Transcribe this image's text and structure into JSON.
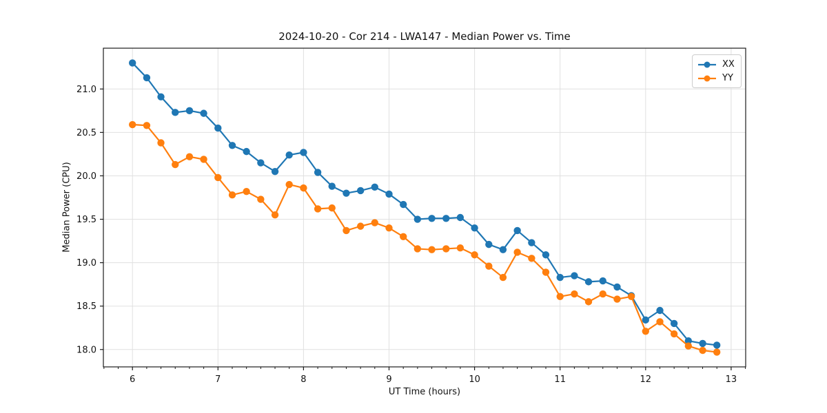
{
  "chart_data": {
    "type": "line",
    "title": "2024-10-20 - Cor 214 - LWA147 - Median Power vs. Time",
    "xlabel": "UT Time (hours)",
    "ylabel": "Median Power (CPU)",
    "xlim": [
      5.66,
      13.17
    ],
    "ylim": [
      17.8,
      21.47
    ],
    "xtick_values": [
      6,
      7,
      8,
      9,
      10,
      11,
      12,
      13
    ],
    "xtick_labels": [
      "6",
      "7",
      "8",
      "9",
      "10",
      "11",
      "12",
      "13"
    ],
    "ytick_values": [
      18.0,
      18.5,
      19.0,
      19.5,
      20.0,
      20.5,
      21.0
    ],
    "ytick_labels": [
      "18.0",
      "18.5",
      "19.0",
      "19.5",
      "20.0",
      "20.5",
      "21.0"
    ],
    "x_minor_tick_step_hours": 0.16667,
    "grid": true,
    "grid_color": "#e0e0e0",
    "legend_position": "upper right",
    "x": [
      6.0,
      6.167,
      6.333,
      6.5,
      6.667,
      6.833,
      7.0,
      7.167,
      7.333,
      7.5,
      7.667,
      7.833,
      8.0,
      8.167,
      8.333,
      8.5,
      8.667,
      8.833,
      9.0,
      9.167,
      9.333,
      9.5,
      9.667,
      9.833,
      10.0,
      10.167,
      10.333,
      10.5,
      10.667,
      10.833,
      11.0,
      11.167,
      11.333,
      11.5,
      11.667,
      11.833,
      12.0,
      12.167,
      12.333,
      12.5,
      12.667,
      12.833
    ],
    "series": [
      {
        "name": "XX",
        "color": "#1f77b4",
        "marker": "circle",
        "values": [
          21.3,
          21.13,
          20.91,
          20.73,
          20.75,
          20.72,
          20.55,
          20.35,
          20.28,
          20.15,
          20.05,
          20.24,
          20.27,
          20.04,
          19.88,
          19.8,
          19.83,
          19.87,
          19.79,
          19.67,
          19.5,
          19.51,
          19.51,
          19.52,
          19.4,
          19.21,
          19.15,
          19.37,
          19.23,
          19.09,
          18.83,
          18.85,
          18.78,
          18.79,
          18.72,
          18.62,
          18.34,
          18.45,
          18.3,
          18.1,
          18.07,
          18.05
        ]
      },
      {
        "name": "YY",
        "color": "#ff7f0e",
        "marker": "circle",
        "values": [
          20.59,
          20.58,
          20.38,
          20.13,
          20.22,
          20.19,
          19.98,
          19.78,
          19.82,
          19.73,
          19.55,
          19.9,
          19.86,
          19.62,
          19.63,
          19.37,
          19.42,
          19.46,
          19.4,
          19.3,
          19.16,
          19.15,
          19.16,
          19.17,
          19.09,
          18.96,
          18.83,
          19.12,
          19.05,
          18.89,
          18.61,
          18.64,
          18.55,
          18.64,
          18.58,
          18.61,
          18.21,
          18.32,
          18.18,
          18.04,
          17.99,
          17.97
        ]
      }
    ]
  }
}
